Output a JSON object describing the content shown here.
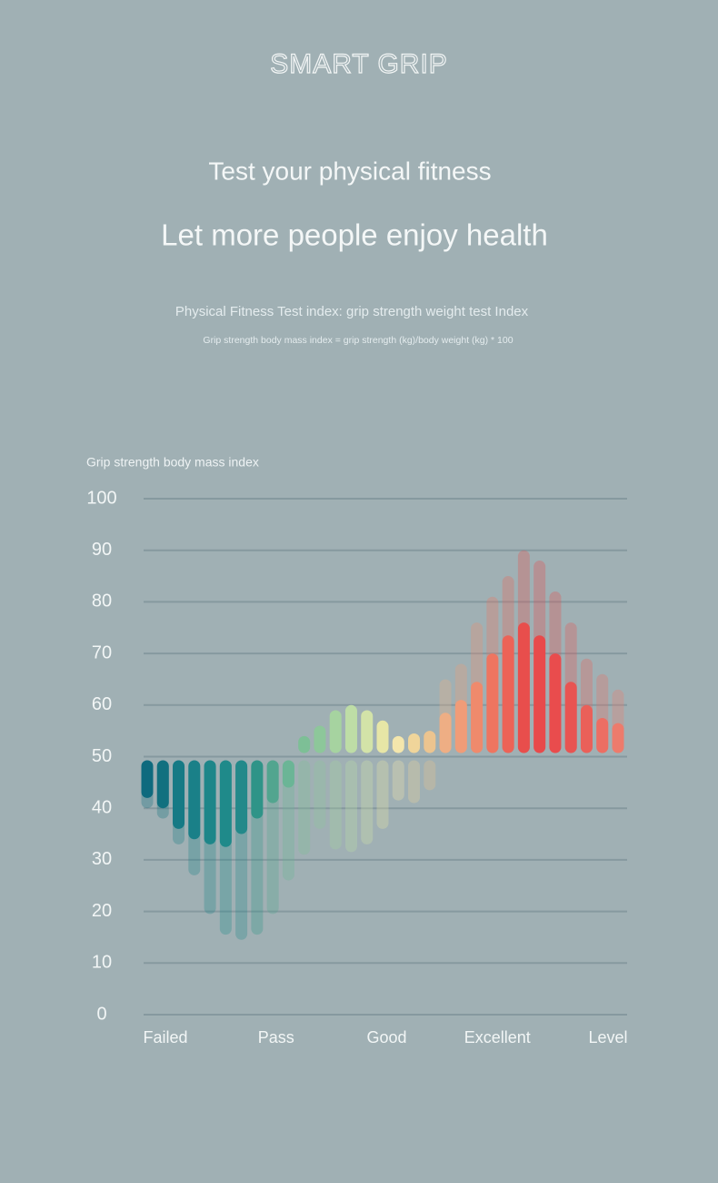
{
  "brand": "SMART GRIP",
  "headline": [
    "Test your physical fitness",
    "Let more people enjoy health"
  ],
  "description": "Physical Fitness Test index: grip strength weight test Index",
  "formula": "Grip strength body mass index = grip strength (kg)/body weight (kg) * 100",
  "chart_data": {
    "type": "bar",
    "y_label": "Grip strength body mass index",
    "ylim": [
      0,
      100
    ],
    "yticks": [
      0,
      10,
      20,
      30,
      40,
      50,
      60,
      70,
      80,
      90,
      100
    ],
    "grid": true,
    "baseline": 50,
    "categories": [
      null,
      null,
      null,
      null,
      null,
      null,
      null,
      null,
      null,
      null,
      null,
      null,
      null,
      null,
      null,
      null,
      null,
      null,
      null,
      null,
      null,
      null,
      null,
      null,
      null,
      null,
      null,
      null,
      null,
      null,
      null
    ],
    "colors": [
      "#0e6a7e",
      "#11707f",
      "#167a85",
      "#1a8088",
      "#1d8689",
      "#1f8a8a",
      "#23898a",
      "#2f9488",
      "#52a58f",
      "#6bb596",
      "#7dbf96",
      "#8dc79a",
      "#a6d3a0",
      "#bedda6",
      "#d3e3a8",
      "#e7e6a6",
      "#f4e6ac",
      "#f0d59a",
      "#ecc48f",
      "#eeae84",
      "#f09c78",
      "#ef8a6c",
      "#ee7560",
      "#ec6357",
      "#e84e4c",
      "#e84a4b",
      "#e94c4d",
      "#e85452",
      "#ea6059",
      "#ec6e63",
      "#ed7b6c"
    ],
    "series": [
      {
        "opacity": 0.3,
        "values": [
          40,
          38,
          33,
          27,
          19.5,
          15.5,
          14.5,
          15.5,
          19.5,
          26,
          31,
          36,
          32,
          31.5,
          33,
          36,
          41.5,
          41,
          43.5,
          65,
          68,
          76,
          81,
          85,
          90,
          88,
          82,
          76,
          69,
          66,
          63
        ]
      },
      {
        "opacity": 1,
        "values": [
          42,
          40,
          36,
          34,
          33,
          32.5,
          35,
          38,
          41,
          44,
          54,
          56,
          59,
          60,
          59,
          57,
          54,
          54.5,
          55,
          58.5,
          61,
          64.5,
          70,
          73.5,
          76,
          73.5,
          70,
          64.5,
          60,
          57.5,
          56.5
        ]
      }
    ],
    "x_labels": [
      "Failed",
      "Pass",
      "Good",
      "Excellent",
      "Level"
    ]
  }
}
